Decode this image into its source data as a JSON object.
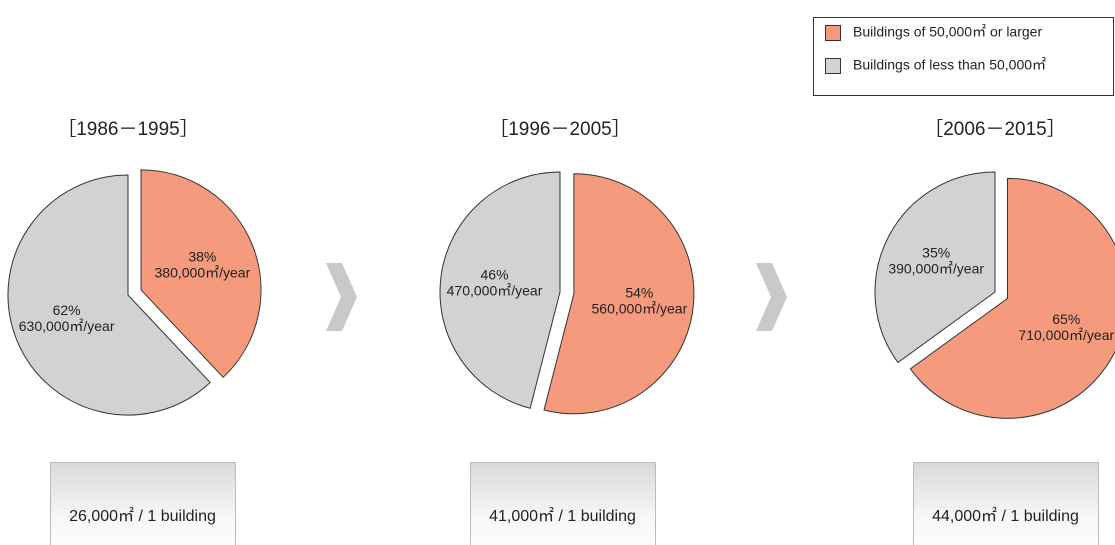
{
  "legend": [
    {
      "name": "Buildings of 50,000㎡ or larger",
      "color": "#f59a7c"
    },
    {
      "name": "Buildings of less than 50,000㎡",
      "color": "#d1d2d4"
    }
  ],
  "chart_data": [
    {
      "type": "pie",
      "title": "［1986－1995］",
      "values": [
        38,
        62
      ],
      "value_labels": [
        "38%",
        "62%"
      ],
      "area_labels": [
        "380,000㎡/year",
        "630,000㎡/year"
      ],
      "per_building": "26,000㎡ / 1 building"
    },
    {
      "type": "pie",
      "title": "［1996－2005］",
      "values": [
        54,
        46
      ],
      "value_labels": [
        "54%",
        "46%"
      ],
      "area_labels": [
        "560,000㎡/year",
        "470,000㎡/year"
      ],
      "per_building": "41,000㎡ / 1 building"
    },
    {
      "type": "pie",
      "title": "［2006－2015］",
      "values": [
        65,
        35
      ],
      "value_labels": [
        "65%",
        "35%"
      ],
      "area_labels": [
        "710,000㎡/year",
        "390,000㎡/year"
      ],
      "per_building": "44,000㎡ / 1 building"
    }
  ]
}
